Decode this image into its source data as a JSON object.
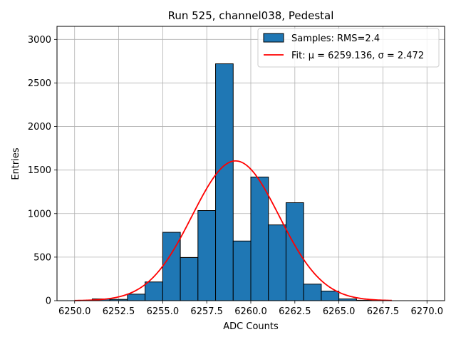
{
  "chart_data": {
    "type": "bar",
    "title": "Run 525, channel038, Pedestal",
    "xlabel": "ADC Counts",
    "ylabel": "Entries",
    "xlim": [
      6249.0,
      6271.0
    ],
    "ylim": [
      0,
      3150
    ],
    "grid": true,
    "legend_position": "top-right",
    "x_ticks": [
      "6250.0",
      "6252.5",
      "6255.0",
      "6257.5",
      "6260.0",
      "6262.5",
      "6265.0",
      "6267.5",
      "6270.0"
    ],
    "y_ticks": [
      "0",
      "500",
      "1000",
      "1500",
      "2000",
      "2500",
      "3000"
    ],
    "histogram": {
      "name": "Samples: RMS=2.4",
      "color": "#1f77b4",
      "edgecolor": "#000000",
      "bin_edges": [
        6251.0,
        6252.0,
        6253.0,
        6254.0,
        6255.0,
        6256.0,
        6257.0,
        6258.0,
        6259.0,
        6260.0,
        6261.0,
        6262.0,
        6263.0,
        6264.0,
        6265.0,
        6266.0,
        6267.0
      ],
      "counts": [
        20,
        15,
        75,
        215,
        785,
        495,
        1035,
        2720,
        685,
        1420,
        870,
        1125,
        190,
        110,
        20,
        5
      ]
    },
    "fit": {
      "name": "Fit: μ = 6259.136, σ = 2.472",
      "color": "#ff0000",
      "mu": 6259.136,
      "sigma": 2.472,
      "amplitude": 1605,
      "x_range": [
        6250.0,
        6268.0
      ]
    }
  }
}
